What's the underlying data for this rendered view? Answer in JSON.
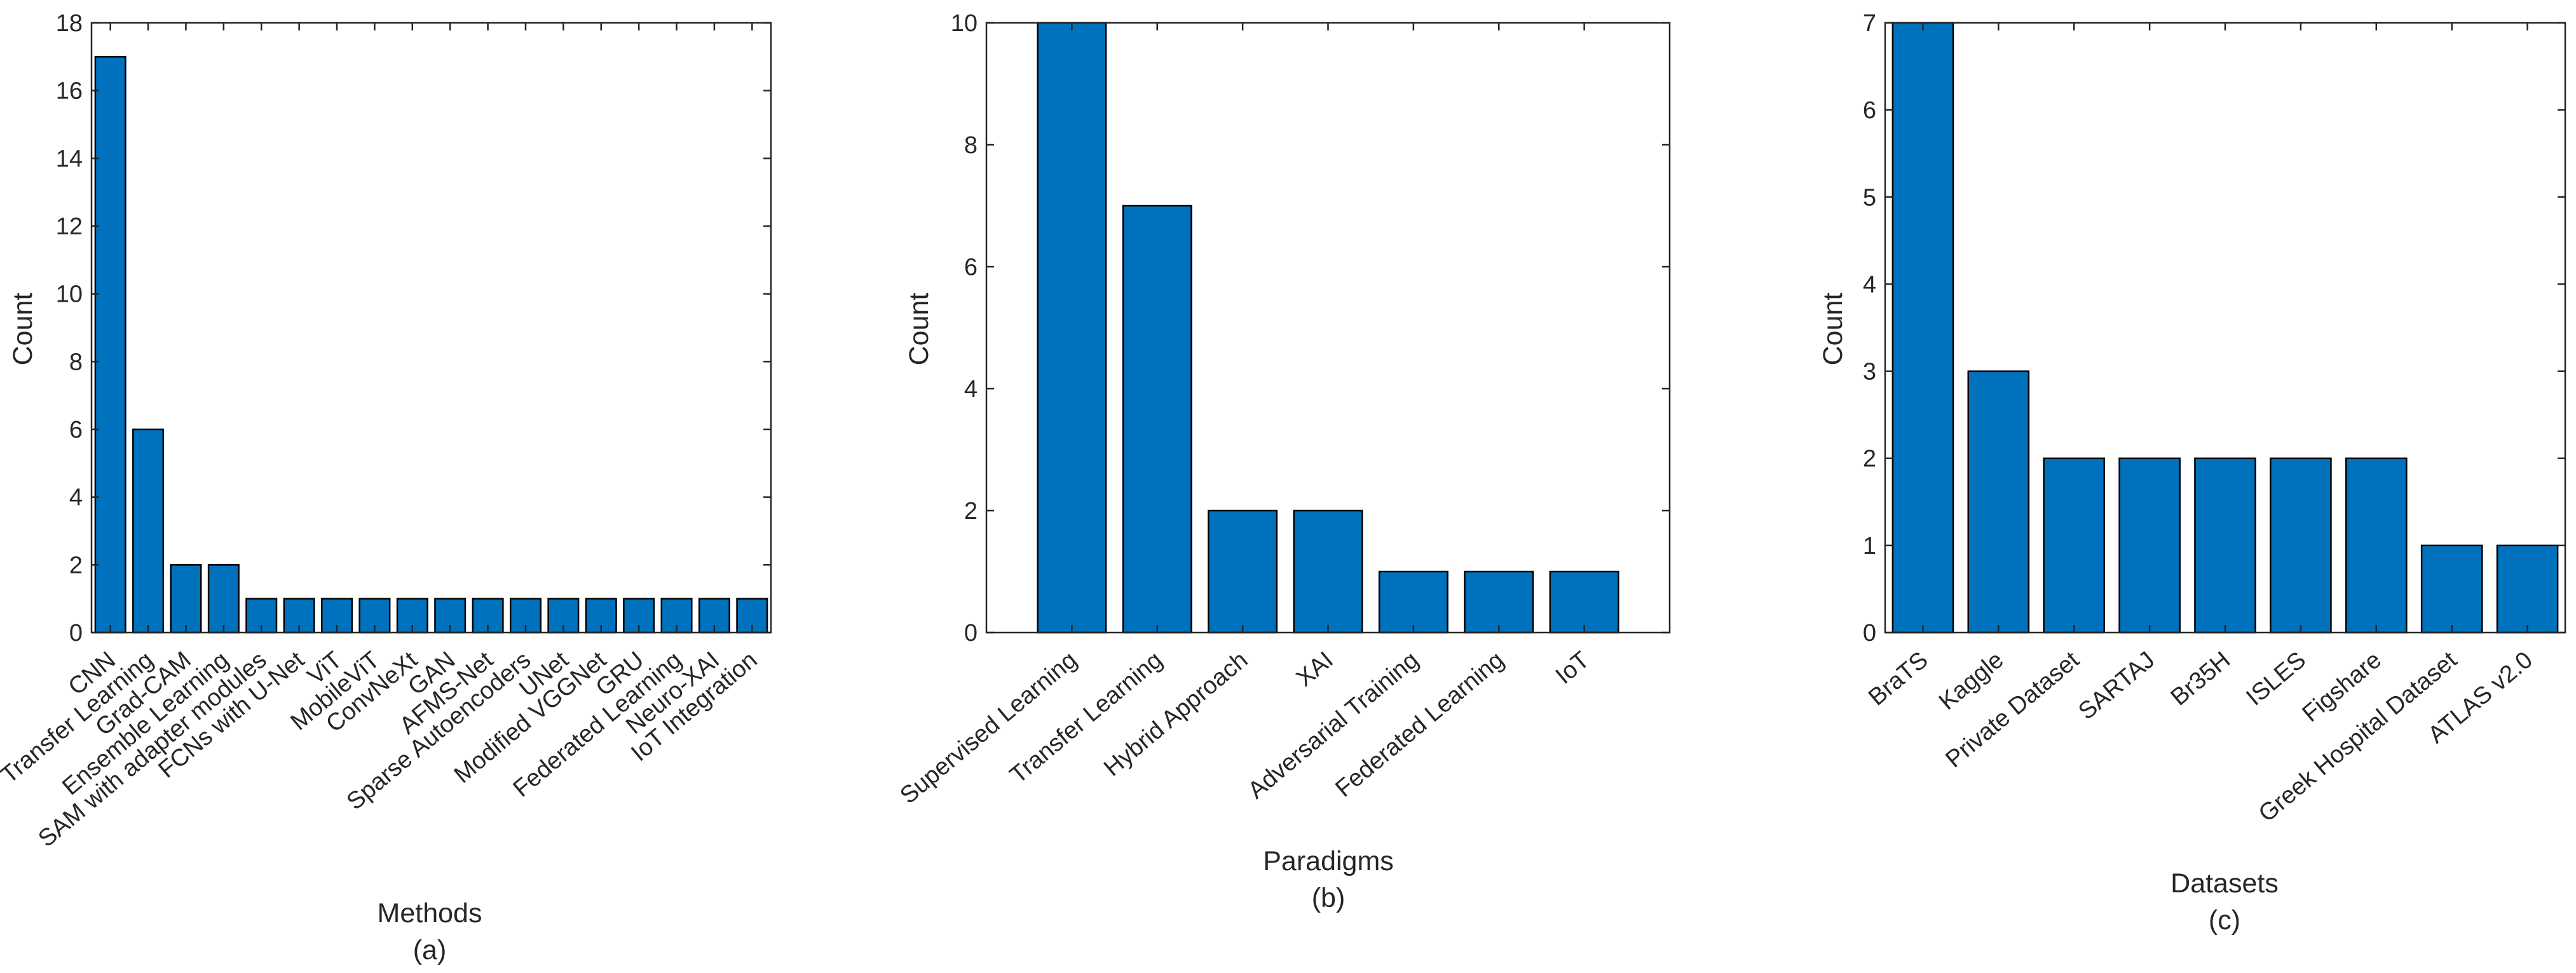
{
  "colors": {
    "bar": "#0072BD",
    "axis": "#262626",
    "bar_edge": "#000000"
  },
  "chart_data": [
    {
      "type": "bar",
      "caption": "(a)",
      "xlabel": "Methods",
      "ylabel": "Count",
      "ylim": [
        0,
        18
      ],
      "yticks": [
        0,
        2,
        4,
        6,
        8,
        10,
        12,
        14,
        16,
        18
      ],
      "grid": false,
      "categories": [
        "CNN",
        "Transfer Learning",
        "Grad-CAM",
        "Ensemble Learning",
        "SAM with adapter modules",
        "FCNs with U-Net",
        "ViT",
        "MobileViT",
        "ConvNeXt",
        "GAN",
        "AFMS-Net",
        "Sparse Autoencoders",
        "UNet",
        "Modified VGGNet",
        "GRU",
        "Federated Learning",
        "Neuro-XAI",
        "IoT Integration"
      ],
      "values": [
        17,
        6,
        2,
        2,
        1,
        1,
        1,
        1,
        1,
        1,
        1,
        1,
        1,
        1,
        1,
        1,
        1,
        1
      ]
    },
    {
      "type": "bar",
      "caption": "(b)",
      "xlabel": "Paradigms",
      "ylabel": "Count",
      "ylim": [
        0,
        10
      ],
      "yticks": [
        0,
        2,
        4,
        6,
        8,
        10
      ],
      "grid": false,
      "categories": [
        "Supervised Learning",
        "Transfer Learning",
        "Hybrid Approach",
        "XAI",
        "Adversarial Training",
        "Federated Learning",
        "IoT"
      ],
      "values": [
        10,
        7,
        2,
        2,
        1,
        1,
        1
      ]
    },
    {
      "type": "bar",
      "caption": "(c)",
      "xlabel": "Datasets",
      "ylabel": "Count",
      "ylim": [
        0,
        7
      ],
      "yticks": [
        0,
        1,
        2,
        3,
        4,
        5,
        6,
        7
      ],
      "grid": false,
      "categories": [
        "BraTS",
        "Kaggle",
        "Private Dataset",
        "SARTAJ",
        "Br35H",
        "ISLES",
        "Figshare",
        "Greek Hospital Dataset",
        "ATLAS v2.0"
      ],
      "values": [
        7,
        3,
        2,
        2,
        2,
        2,
        2,
        1,
        1
      ]
    }
  ]
}
